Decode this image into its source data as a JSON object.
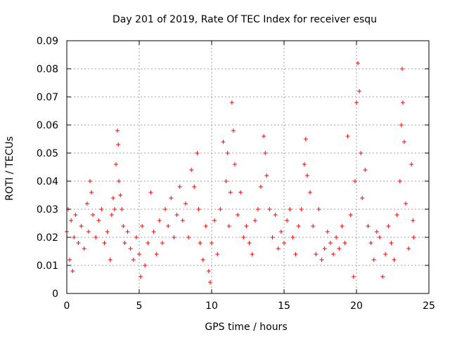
{
  "chart_data": {
    "type": "scatter",
    "title": "Day 201 of 2019, Rate Of TEC Index for receiver esqu",
    "xlabel": "GPS time / hours",
    "ylabel": "ROTI / TECUs",
    "xlim": [
      0,
      25
    ],
    "ylim": [
      0,
      0.09
    ],
    "xticks": [
      0,
      5,
      10,
      15,
      20,
      25
    ],
    "xtick_labels": [
      "0",
      "5",
      "10",
      "15",
      "20",
      "25"
    ],
    "yticks": [
      0,
      0.01,
      0.02,
      0.03,
      0.04,
      0.05,
      0.06,
      0.07,
      0.08,
      0.09
    ],
    "ytick_labels": [
      "0",
      "0.01",
      "0.02",
      "0.03",
      "0.04",
      "0.05",
      "0.06",
      "0.07",
      "0.08",
      "0.09"
    ],
    "grid": true,
    "marker": "plus",
    "series_color": "#ff0000",
    "series": [
      {
        "name": "ROTI",
        "points": [
          [
            0.0,
            0.022
          ],
          [
            0.1,
            0.03
          ],
          [
            0.2,
            0.012
          ],
          [
            0.3,
            0.026
          ],
          [
            0.4,
            0.008
          ],
          [
            0.5,
            0.02
          ],
          [
            0.6,
            0.028
          ],
          [
            0.8,
            0.018
          ],
          [
            1.0,
            0.024
          ],
          [
            1.2,
            0.016
          ],
          [
            1.4,
            0.032
          ],
          [
            1.5,
            0.022
          ],
          [
            1.6,
            0.04
          ],
          [
            1.7,
            0.036
          ],
          [
            1.8,
            0.028
          ],
          [
            2.0,
            0.02
          ],
          [
            2.2,
            0.026
          ],
          [
            2.4,
            0.03
          ],
          [
            2.6,
            0.018
          ],
          [
            2.8,
            0.022
          ],
          [
            3.0,
            0.012
          ],
          [
            3.1,
            0.028
          ],
          [
            3.2,
            0.034
          ],
          [
            3.3,
            0.03
          ],
          [
            3.4,
            0.046
          ],
          [
            3.5,
            0.058
          ],
          [
            3.55,
            0.053
          ],
          [
            3.6,
            0.04
          ],
          [
            3.7,
            0.035
          ],
          [
            3.8,
            0.03
          ],
          [
            3.9,
            0.024
          ],
          [
            4.0,
            0.018
          ],
          [
            4.2,
            0.022
          ],
          [
            4.4,
            0.016
          ],
          [
            4.6,
            0.012
          ],
          [
            4.8,
            0.02
          ],
          [
            5.0,
            0.014
          ],
          [
            5.1,
            0.006
          ],
          [
            5.2,
            0.024
          ],
          [
            5.4,
            0.01
          ],
          [
            5.6,
            0.018
          ],
          [
            5.8,
            0.036
          ],
          [
            6.0,
            0.022
          ],
          [
            6.2,
            0.014
          ],
          [
            6.4,
            0.026
          ],
          [
            6.6,
            0.018
          ],
          [
            6.8,
            0.03
          ],
          [
            7.0,
            0.024
          ],
          [
            7.2,
            0.034
          ],
          [
            7.4,
            0.02
          ],
          [
            7.6,
            0.028
          ],
          [
            7.8,
            0.038
          ],
          [
            8.0,
            0.026
          ],
          [
            8.2,
            0.032
          ],
          [
            8.4,
            0.02
          ],
          [
            8.6,
            0.044
          ],
          [
            8.8,
            0.038
          ],
          [
            9.0,
            0.05
          ],
          [
            9.1,
            0.03
          ],
          [
            9.2,
            0.018
          ],
          [
            9.4,
            0.012
          ],
          [
            9.6,
            0.024
          ],
          [
            9.8,
            0.008
          ],
          [
            9.9,
            0.004
          ],
          [
            10.0,
            0.018
          ],
          [
            10.2,
            0.026
          ],
          [
            10.4,
            0.014
          ],
          [
            10.6,
            0.03
          ],
          [
            10.8,
            0.054
          ],
          [
            11.0,
            0.04
          ],
          [
            11.1,
            0.05
          ],
          [
            11.2,
            0.024
          ],
          [
            11.3,
            0.036
          ],
          [
            11.4,
            0.068
          ],
          [
            11.5,
            0.058
          ],
          [
            11.6,
            0.046
          ],
          [
            11.8,
            0.028
          ],
          [
            12.0,
            0.036
          ],
          [
            12.2,
            0.02
          ],
          [
            12.4,
            0.024
          ],
          [
            12.6,
            0.018
          ],
          [
            12.8,
            0.014
          ],
          [
            13.0,
            0.026
          ],
          [
            13.2,
            0.03
          ],
          [
            13.4,
            0.038
          ],
          [
            13.6,
            0.056
          ],
          [
            13.7,
            0.05
          ],
          [
            13.8,
            0.042
          ],
          [
            14.0,
            0.03
          ],
          [
            14.2,
            0.02
          ],
          [
            14.4,
            0.028
          ],
          [
            14.6,
            0.016
          ],
          [
            14.8,
            0.022
          ],
          [
            15.0,
            0.018
          ],
          [
            15.2,
            0.026
          ],
          [
            15.4,
            0.03
          ],
          [
            15.6,
            0.02
          ],
          [
            15.8,
            0.014
          ],
          [
            16.0,
            0.024
          ],
          [
            16.2,
            0.03
          ],
          [
            16.4,
            0.046
          ],
          [
            16.5,
            0.055
          ],
          [
            16.6,
            0.042
          ],
          [
            16.8,
            0.036
          ],
          [
            17.0,
            0.024
          ],
          [
            17.2,
            0.014
          ],
          [
            17.4,
            0.03
          ],
          [
            17.6,
            0.012
          ],
          [
            17.8,
            0.016
          ],
          [
            18.0,
            0.022
          ],
          [
            18.2,
            0.018
          ],
          [
            18.4,
            0.014
          ],
          [
            18.6,
            0.02
          ],
          [
            18.8,
            0.016
          ],
          [
            19.0,
            0.024
          ],
          [
            19.2,
            0.018
          ],
          [
            19.4,
            0.056
          ],
          [
            19.6,
            0.028
          ],
          [
            19.8,
            0.006
          ],
          [
            19.9,
            0.04
          ],
          [
            20.0,
            0.068
          ],
          [
            20.1,
            0.082
          ],
          [
            20.2,
            0.072
          ],
          [
            20.3,
            0.05
          ],
          [
            20.4,
            0.034
          ],
          [
            20.6,
            0.044
          ],
          [
            20.8,
            0.024
          ],
          [
            21.0,
            0.018
          ],
          [
            21.2,
            0.012
          ],
          [
            21.4,
            0.022
          ],
          [
            21.6,
            0.02
          ],
          [
            21.8,
            0.006
          ],
          [
            22.0,
            0.014
          ],
          [
            22.2,
            0.024
          ],
          [
            22.4,
            0.018
          ],
          [
            22.6,
            0.012
          ],
          [
            22.8,
            0.028
          ],
          [
            23.0,
            0.04
          ],
          [
            23.1,
            0.06
          ],
          [
            23.15,
            0.08
          ],
          [
            23.2,
            0.068
          ],
          [
            23.3,
            0.054
          ],
          [
            23.4,
            0.032
          ],
          [
            23.6,
            0.016
          ],
          [
            23.8,
            0.046
          ],
          [
            23.9,
            0.026
          ],
          [
            23.95,
            0.02
          ]
        ]
      }
    ]
  }
}
